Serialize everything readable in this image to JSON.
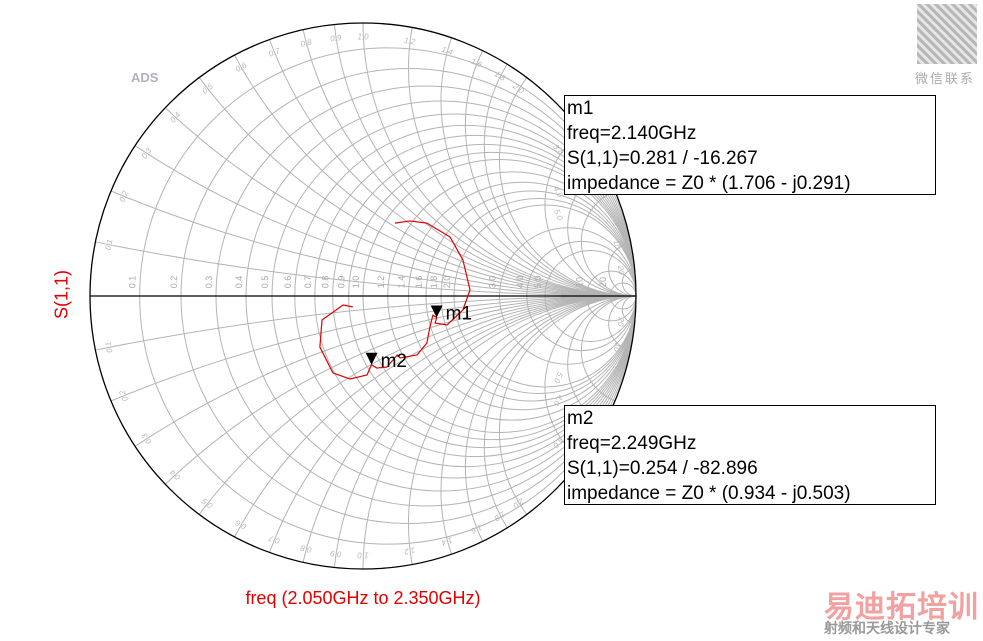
{
  "chart_data": {
    "type": "smith",
    "title": "",
    "ylabel": "S(1,1)",
    "xlabel": "freq (2.050GHz to 2.350GHz)",
    "watermark_top_left": "ADS",
    "resistance_ticks": [
      0.1,
      0.2,
      0.3,
      0.4,
      0.5,
      0.6,
      0.7,
      0.8,
      0.9,
      1.0,
      1.2,
      1.4,
      1.6,
      1.8,
      2.0,
      3.0,
      4.0,
      5.0,
      10,
      20
    ],
    "reactance_ticks": [
      0.1,
      0.2,
      0.3,
      0.4,
      0.5,
      0.6,
      0.7,
      0.8,
      0.9,
      1.0,
      1.2,
      1.4,
      1.6,
      1.8,
      2.0,
      3.0,
      4.0,
      5.0,
      10,
      20
    ],
    "resistance_labels": [
      "0.1",
      "0.2",
      "0.3",
      "0.4",
      "0.5",
      "0.6",
      "0.7",
      "0.8",
      "0.9",
      "1.0",
      "1.2",
      "1.4",
      "1.6",
      "1.8",
      "2.0",
      "3.0",
      "4.0",
      "5.0",
      "10",
      "20"
    ],
    "trace_color": "#e00000",
    "grid_color": "#b4b4b4",
    "series": [
      {
        "gamma": [
          [
            -0.037,
            -0.04
          ],
          [
            -0.073,
            -0.033
          ],
          [
            -0.15,
            -0.088
          ],
          [
            -0.158,
            -0.187
          ],
          [
            -0.11,
            -0.282
          ],
          [
            -0.048,
            -0.304
          ],
          [
            0.015,
            -0.289
          ],
          [
            0.031,
            -0.252
          ],
          [
            0.051,
            -0.264
          ],
          [
            0.088,
            -0.26
          ],
          [
            0.125,
            -0.216
          ],
          [
            0.136,
            -0.227
          ],
          [
            0.198,
            -0.216
          ],
          [
            0.234,
            -0.172
          ],
          [
            0.245,
            -0.114
          ],
          [
            0.256,
            -0.07
          ],
          [
            0.27,
            -0.079
          ],
          [
            0.264,
            -0.099
          ],
          [
            0.308,
            -0.106
          ],
          [
            0.366,
            -0.051
          ],
          [
            0.392,
            0.022
          ],
          [
            0.366,
            0.132
          ],
          [
            0.319,
            0.216
          ],
          [
            0.234,
            0.267
          ],
          [
            0.172,
            0.275
          ],
          [
            0.117,
            0.267
          ]
        ]
      }
    ],
    "markers": [
      {
        "name": "m1",
        "freq": "freq=2.140GHz",
        "s11": "S(1,1)=0.281 / -16.267",
        "impedance": "impedance = Z0 * (1.706 - j0.291)",
        "mag": 0.281,
        "angle_deg": -16.267
      },
      {
        "name": "m2",
        "freq": "freq=2.249GHz",
        "s11": "S(1,1)=0.254 / -82.896",
        "impedance": "impedance = Z0 * (0.934 - j0.503)",
        "mag": 0.254,
        "angle_deg": -82.896
      }
    ]
  },
  "watermark": {
    "qr_caption": "微信联系",
    "brand": "易迪拓培训",
    "tagline": "射频和天线设计专家"
  }
}
